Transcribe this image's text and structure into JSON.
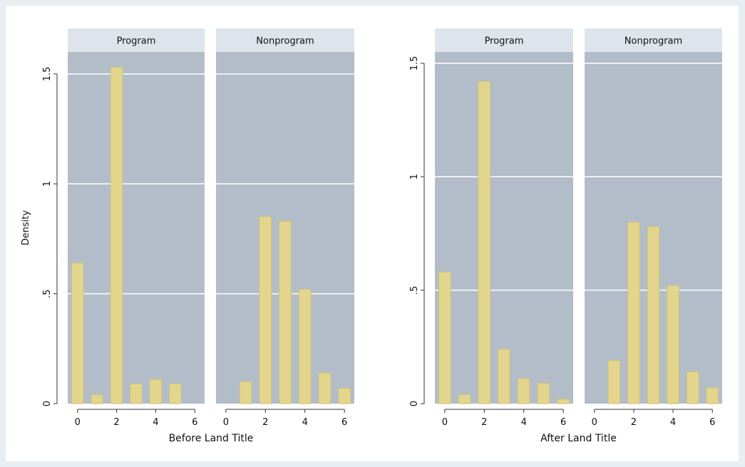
{
  "chart_data": [
    {
      "type": "bar",
      "xlabel": "Before Land Title",
      "ylabel": "Density",
      "ylim": [
        0,
        1.6
      ],
      "xlim": [
        -0.5,
        6.5
      ],
      "yticks": [
        0,
        0.5,
        1,
        1.5
      ],
      "ytick_labels": [
        "0",
        ".5",
        "1",
        "1.5"
      ],
      "xticks": [
        0,
        2,
        4,
        6
      ],
      "xtick_labels": [
        "0",
        "2",
        "4",
        "6"
      ],
      "grid": true,
      "bar_color": "#e3d58c",
      "panels": [
        {
          "label": "Program",
          "x": [
            0,
            1,
            2,
            3,
            4,
            5,
            6
          ],
          "values": [
            0.64,
            0.04,
            1.53,
            0.09,
            0.11,
            0.09,
            0
          ]
        },
        {
          "label": "Nonprogram",
          "x": [
            0,
            1,
            2,
            3,
            4,
            5,
            6
          ],
          "values": [
            0,
            0.1,
            0.85,
            0.83,
            0.52,
            0.14,
            0.07
          ]
        }
      ]
    },
    {
      "type": "bar",
      "xlabel": "After Land Title",
      "ylabel": "",
      "ylim": [
        0,
        1.55
      ],
      "xlim": [
        -0.5,
        6.5
      ],
      "yticks": [
        0,
        0.5,
        1,
        1.5
      ],
      "ytick_labels": [
        "0",
        ".5",
        "1",
        "1.5"
      ],
      "xticks": [
        0,
        2,
        4,
        6
      ],
      "xtick_labels": [
        "0",
        "2",
        "4",
        "6"
      ],
      "grid": true,
      "bar_color": "#e3d58c",
      "panels": [
        {
          "label": "Program",
          "x": [
            0,
            1,
            2,
            3,
            4,
            5,
            6
          ],
          "values": [
            0.58,
            0.04,
            1.42,
            0.24,
            0.11,
            0.09,
            0.02
          ]
        },
        {
          "label": "Nonprogram",
          "x": [
            0,
            1,
            2,
            3,
            4,
            5,
            6
          ],
          "values": [
            0,
            0.19,
            0.8,
            0.78,
            0.52,
            0.14,
            0.07
          ]
        }
      ]
    }
  ],
  "colors": {
    "page_background": "#e9eef2",
    "plot_region": "#ffffff",
    "panel_background": "#b3bdc9",
    "strip_background": "#dde4ec",
    "gridline": "#ffffff",
    "bar_fill": "#e3d58c",
    "bar_edge": "#cfc27a"
  }
}
